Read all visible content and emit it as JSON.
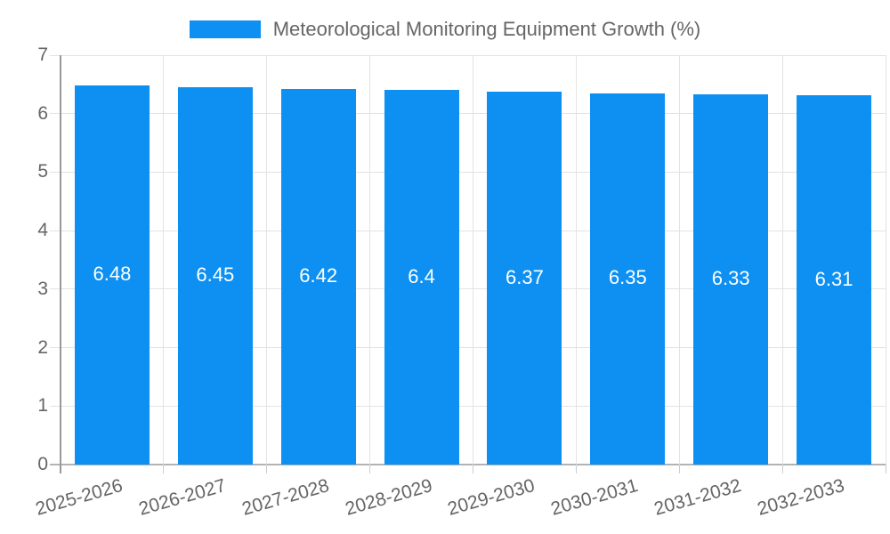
{
  "legend": {
    "label": "Meteorological Monitoring Equipment Growth (%)"
  },
  "chart_data": {
    "type": "bar",
    "title": "Meteorological Monitoring Equipment Growth (%)",
    "categories": [
      "2025-2026",
      "2026-2027",
      "2027-2028",
      "2028-2029",
      "2029-2030",
      "2030-2031",
      "2031-2032",
      "2032-2033"
    ],
    "series": [
      {
        "name": "Meteorological Monitoring Equipment Growth (%)",
        "values": [
          6.48,
          6.45,
          6.42,
          6.4,
          6.37,
          6.35,
          6.33,
          6.31
        ]
      }
    ],
    "bar_value_labels": [
      "6.48",
      "6.45",
      "6.42",
      "6.4",
      "6.37",
      "6.35",
      "6.33",
      "6.31"
    ],
    "xlabel": "",
    "ylabel": "",
    "ylim": [
      0,
      7
    ],
    "yticks": [
      0,
      1,
      2,
      3,
      4,
      5,
      6,
      7
    ],
    "grid": true,
    "legend_position": "top",
    "colors": {
      "bar": "#0d90f2",
      "grid": "#e3e3e3",
      "zero_line": "#b3b3b3",
      "axis_line": "#999999",
      "tick": "#cccccc",
      "text": "#666666",
      "bar_label": "#ffffff"
    }
  }
}
